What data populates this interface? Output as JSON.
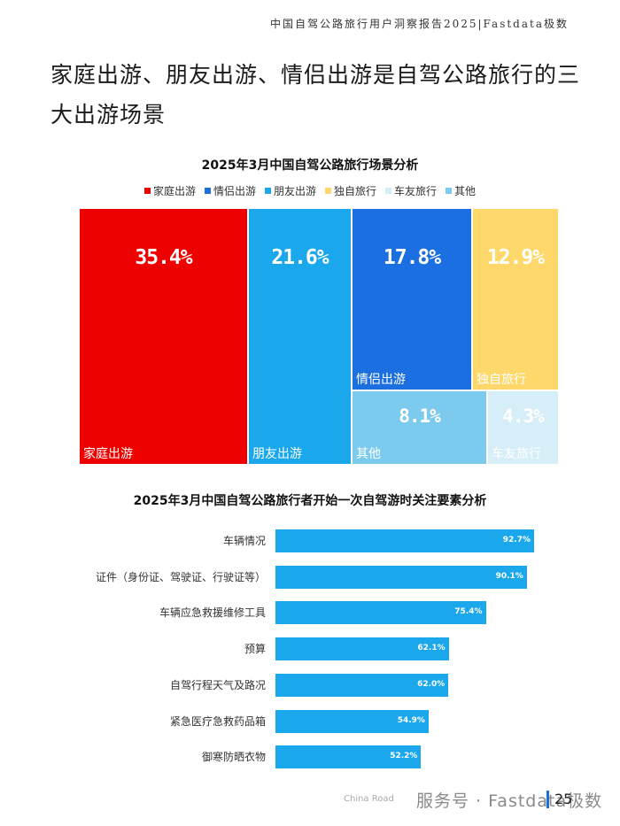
{
  "header": {
    "report_title": "中国自驾公路旅行用户洞察报告2025|Fastdata极数"
  },
  "headline": "家庭出游、朋友出游、情侣出游是自驾公路旅行的三大出游场景",
  "chart_data": [
    {
      "type": "treemap",
      "title": "2025年3月中国自驾公路旅行场景分析",
      "legend": [
        "家庭出游",
        "情侣出游",
        "朋友出游",
        "独自旅行",
        "车友旅行",
        "其他"
      ],
      "items": [
        {
          "name": "家庭出游",
          "value": 35.4,
          "label": "35.4%",
          "color": "#ee0000"
        },
        {
          "name": "朋友出游",
          "value": 21.6,
          "label": "21.6%",
          "color": "#1aa7ec"
        },
        {
          "name": "情侣出游",
          "value": 17.8,
          "label": "17.8%",
          "color": "#1b6fe0"
        },
        {
          "name": "独自旅行",
          "value": 12.9,
          "label": "12.9%",
          "color": "#fed86a"
        },
        {
          "name": "其他",
          "value": 8.1,
          "label": "8.1%",
          "color": "#7ccbef"
        },
        {
          "name": "车友旅行",
          "value": 4.3,
          "label": "4.3%",
          "color": "#d6eef8"
        }
      ]
    },
    {
      "type": "bar",
      "orientation": "horizontal",
      "title": "2025年3月中国自驾公路旅行者开始一次自驾游时关注要素分析",
      "categories": [
        "车辆情况",
        "证件（身份证、驾驶证、行驶证等）",
        "车辆应急救援维修工具",
        "预算",
        "自驾行程天气及路况",
        "紧急医疗急救药品箱",
        "御寒防晒衣物"
      ],
      "values": [
        92.7,
        90.1,
        75.4,
        62.1,
        62.0,
        54.9,
        52.2
      ],
      "labels": [
        "92.7%",
        "90.1%",
        "75.4%",
        "62.1%",
        "62.0%",
        "54.9%",
        "52.2%"
      ],
      "color": "#1aa7ec",
      "xlim": [
        0,
        100
      ]
    }
  ],
  "footer": {
    "report_en": "China Road",
    "watermark": "服务号 · Fastdata极数",
    "page_number": "25"
  }
}
